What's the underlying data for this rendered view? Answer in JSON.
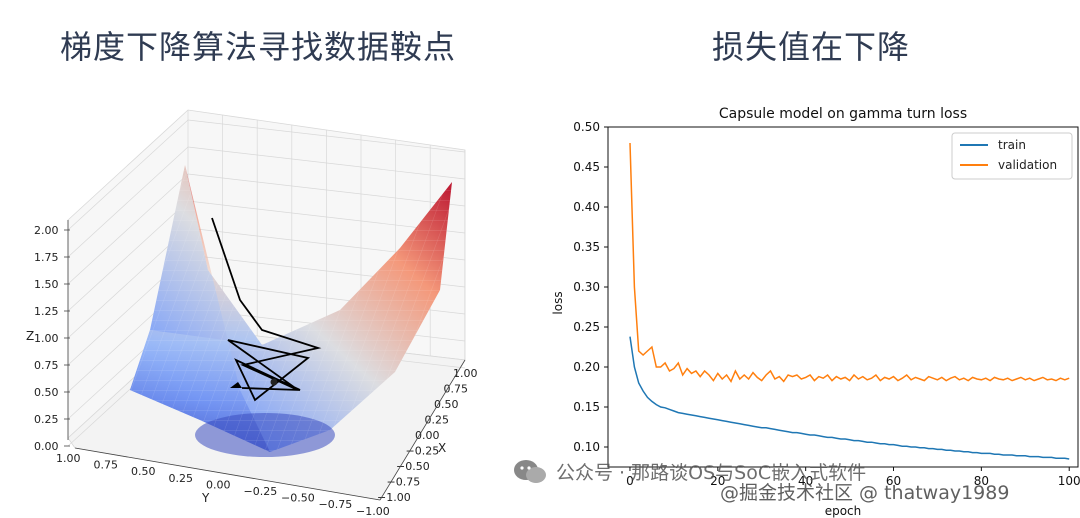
{
  "left_title": "梯度下降算法寻找数据鞍点",
  "right_title": "损失值在下降",
  "surface_plot": {
    "z_label": "Z",
    "x_label": "X",
    "y_label": "Y",
    "z_ticks": [
      "2.00",
      "1.75",
      "1.50",
      "1.25",
      "1.00",
      "0.75",
      "0.50",
      "0.25",
      "0.00"
    ],
    "x_ticks": [
      "1.00",
      "0.75",
      "0.50",
      "0.25",
      "0.00",
      "−0.25",
      "−0.50",
      "−0.75",
      "−1.00"
    ],
    "y_ticks": [
      "1.00",
      "0.75",
      "0.50",
      "0.25",
      "0.00",
      "−0.25",
      "−0.50",
      "−0.75",
      "−1.00"
    ],
    "colors": {
      "high": "#b40426",
      "low": "#3b4cc0"
    }
  },
  "chart_data": {
    "type": "line",
    "title": "Capsule model on gamma turn loss",
    "xlabel": "epoch",
    "ylabel": "loss",
    "xlim": [
      -5,
      102
    ],
    "ylim": [
      0.075,
      0.5
    ],
    "yticks": [
      "0.50",
      "0.45",
      "0.40",
      "0.35",
      "0.30",
      "0.25",
      "0.20",
      "0.15",
      "0.10"
    ],
    "xticks": [
      "0",
      "20",
      "40",
      "60",
      "80",
      "100"
    ],
    "legend_position": "top-right",
    "series": [
      {
        "name": "train",
        "color": "#1f77b4",
        "values": [
          0.238,
          0.2,
          0.18,
          0.17,
          0.162,
          0.157,
          0.153,
          0.15,
          0.149,
          0.147,
          0.145,
          0.143,
          0.142,
          0.141,
          0.14,
          0.139,
          0.138,
          0.137,
          0.136,
          0.135,
          0.134,
          0.133,
          0.132,
          0.131,
          0.13,
          0.129,
          0.128,
          0.127,
          0.126,
          0.125,
          0.124,
          0.124,
          0.123,
          0.122,
          0.121,
          0.12,
          0.119,
          0.118,
          0.118,
          0.117,
          0.116,
          0.115,
          0.115,
          0.114,
          0.113,
          0.112,
          0.112,
          0.111,
          0.11,
          0.11,
          0.109,
          0.108,
          0.108,
          0.107,
          0.106,
          0.106,
          0.105,
          0.104,
          0.104,
          0.103,
          0.103,
          0.102,
          0.101,
          0.101,
          0.1,
          0.1,
          0.099,
          0.099,
          0.098,
          0.098,
          0.097,
          0.097,
          0.096,
          0.096,
          0.095,
          0.095,
          0.094,
          0.094,
          0.093,
          0.093,
          0.092,
          0.092,
          0.092,
          0.091,
          0.091,
          0.09,
          0.09,
          0.09,
          0.089,
          0.089,
          0.089,
          0.088,
          0.088,
          0.088,
          0.087,
          0.087,
          0.087,
          0.086,
          0.086,
          0.086,
          0.085
        ]
      },
      {
        "name": "validation",
        "color": "#ff7f0e",
        "values": [
          0.48,
          0.3,
          0.22,
          0.215,
          0.22,
          0.225,
          0.2,
          0.2,
          0.205,
          0.195,
          0.198,
          0.205,
          0.19,
          0.198,
          0.192,
          0.195,
          0.188,
          0.195,
          0.19,
          0.183,
          0.192,
          0.185,
          0.19,
          0.182,
          0.195,
          0.185,
          0.19,
          0.185,
          0.193,
          0.187,
          0.183,
          0.19,
          0.195,
          0.185,
          0.188,
          0.182,
          0.19,
          0.188,
          0.19,
          0.185,
          0.187,
          0.19,
          0.183,
          0.188,
          0.186,
          0.19,
          0.183,
          0.188,
          0.185,
          0.187,
          0.183,
          0.19,
          0.185,
          0.188,
          0.184,
          0.186,
          0.19,
          0.183,
          0.187,
          0.185,
          0.188,
          0.183,
          0.186,
          0.19,
          0.184,
          0.187,
          0.185,
          0.183,
          0.188,
          0.186,
          0.184,
          0.187,
          0.183,
          0.186,
          0.188,
          0.184,
          0.186,
          0.183,
          0.187,
          0.185,
          0.184,
          0.186,
          0.183,
          0.187,
          0.185,
          0.184,
          0.186,
          0.183,
          0.185,
          0.187,
          0.184,
          0.186,
          0.183,
          0.185,
          0.187,
          0.184,
          0.185,
          0.183,
          0.186,
          0.184,
          0.186
        ]
      }
    ]
  },
  "watermark_line1": "公众号 · 那路谈OS与SoC嵌入式软件",
  "watermark_line2": "@掘金技术社区 @ thatway1989"
}
